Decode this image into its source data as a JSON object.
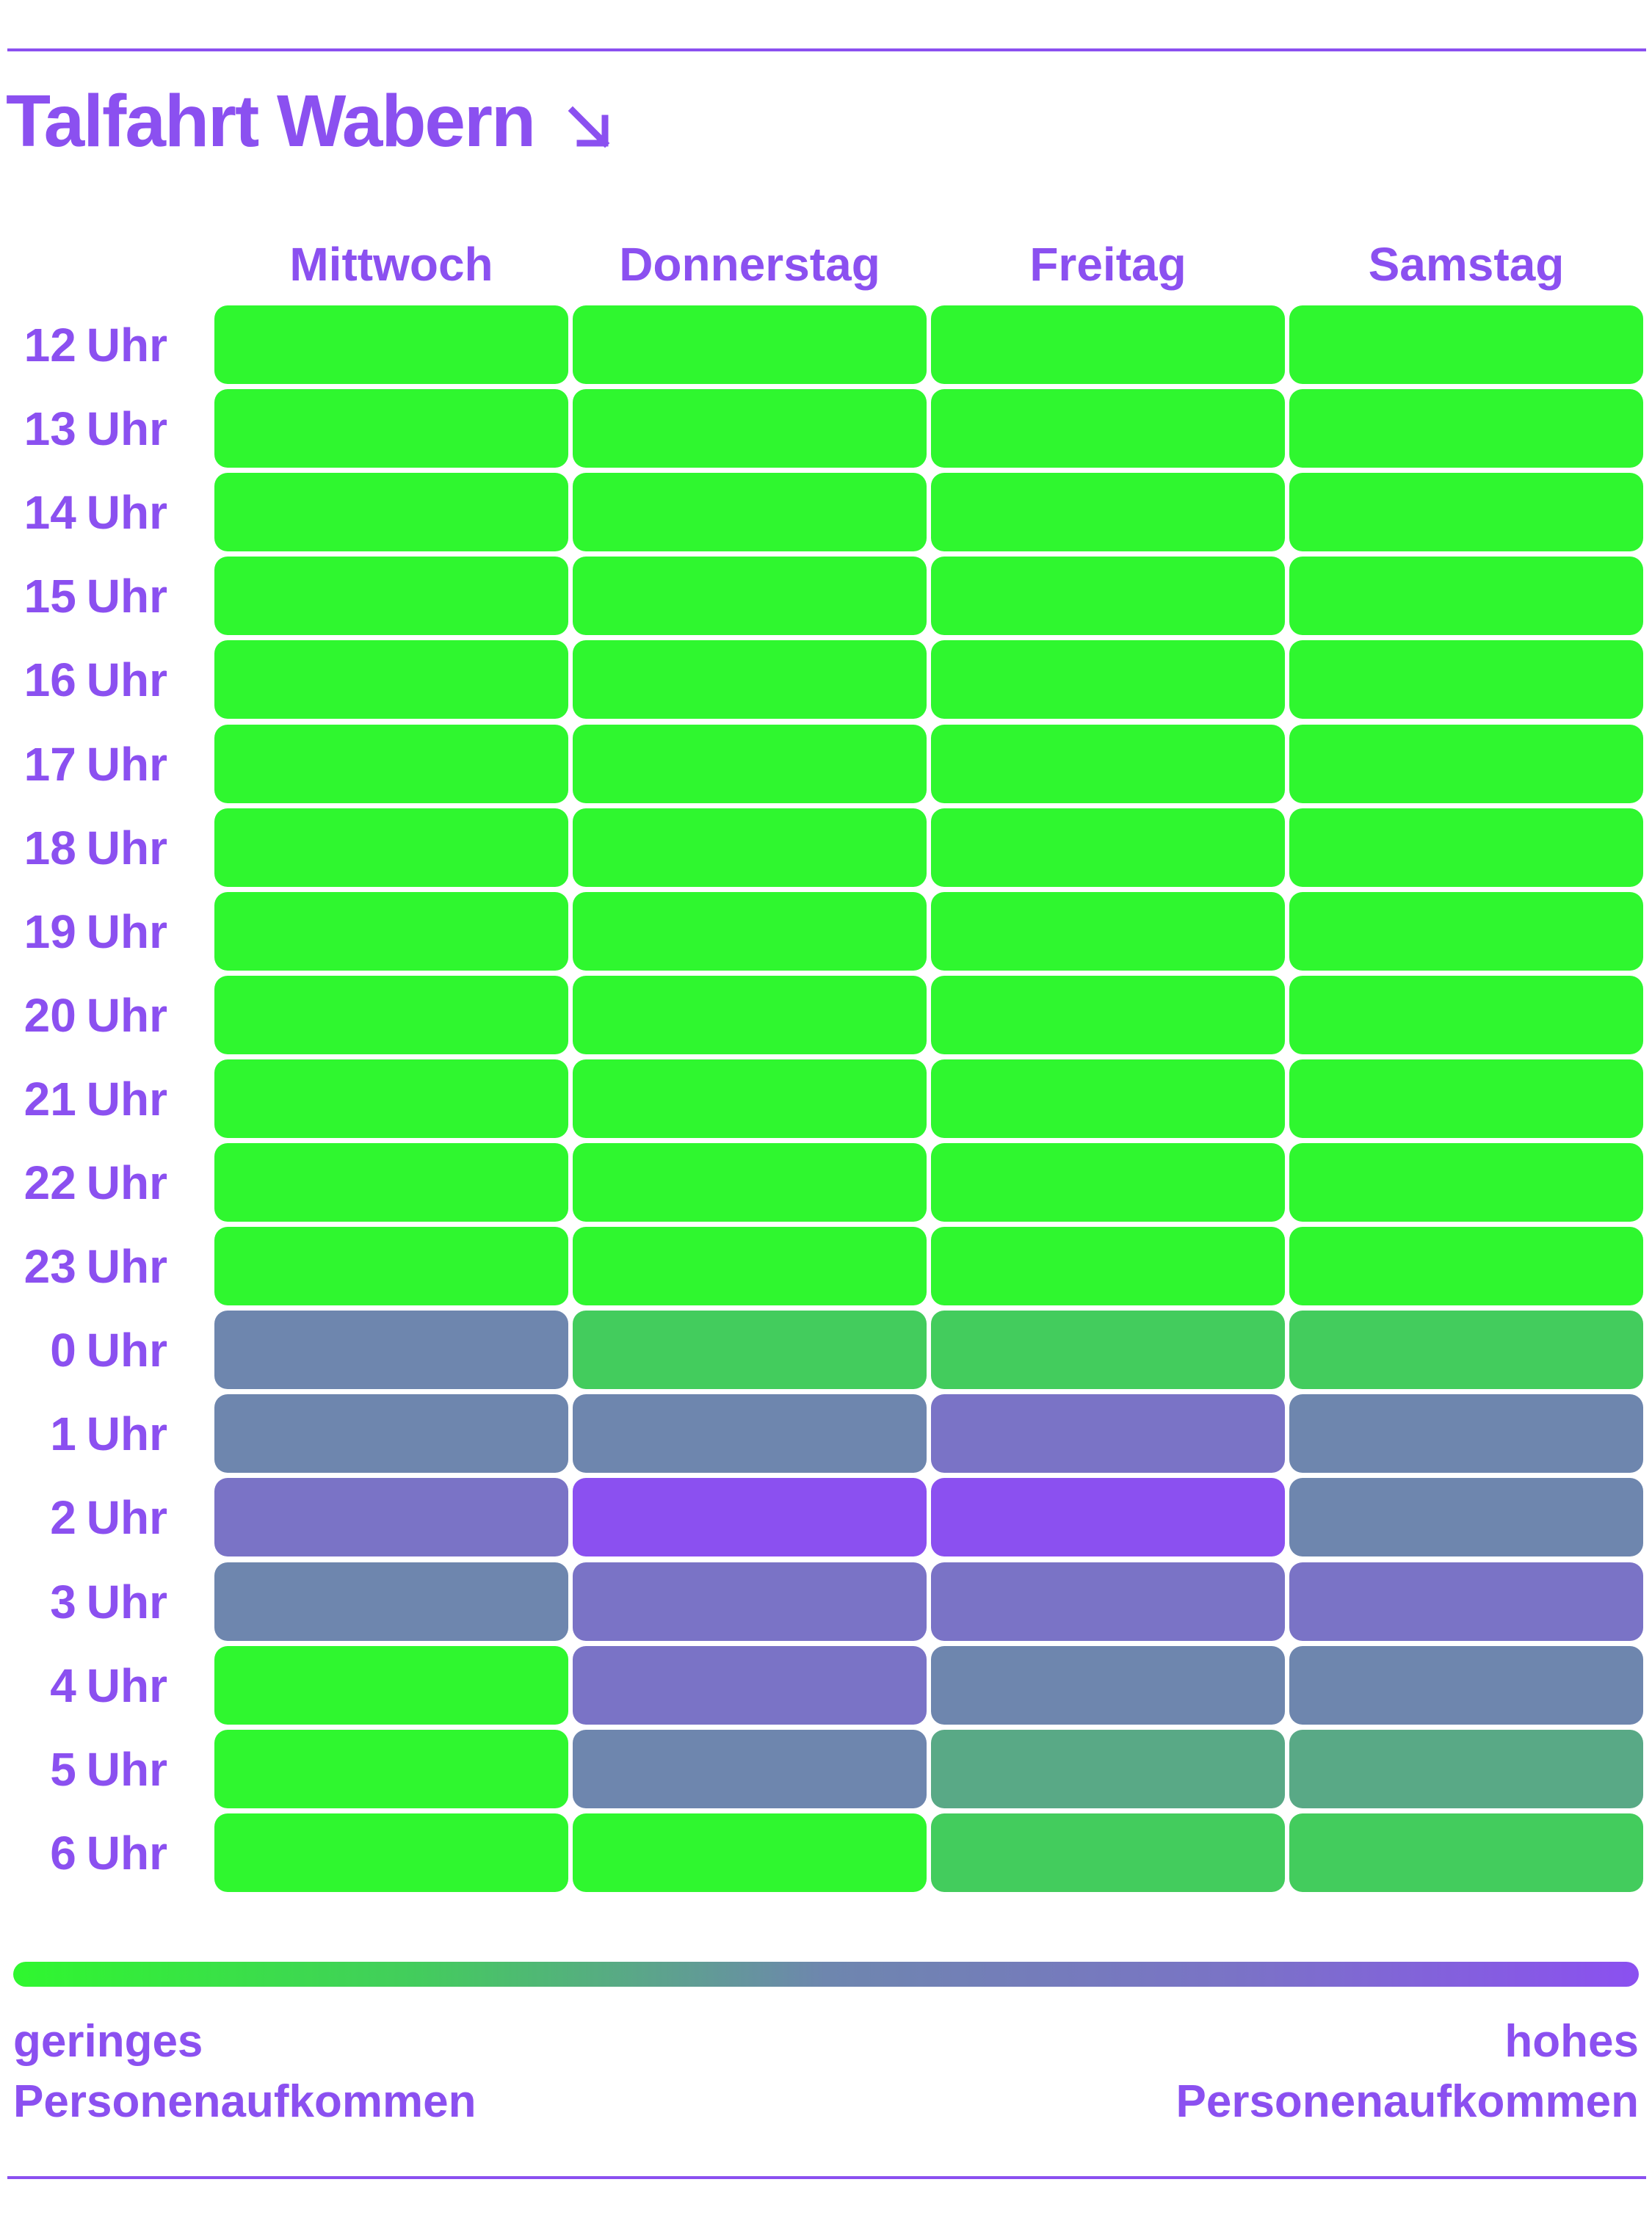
{
  "chart_data": {
    "type": "heatmap",
    "title": "Talfahrt Wabern",
    "title_icon": "arrow-down-right-icon",
    "columns": [
      "Mittwoch",
      "Donnerstag",
      "Freitag",
      "Samstag"
    ],
    "rows": [
      "12",
      "13",
      "14",
      "15",
      "16",
      "17",
      "18",
      "19",
      "20",
      "21",
      "22",
      "23",
      "0",
      "1",
      "2",
      "3",
      "4",
      "5",
      "6"
    ],
    "row_unit": "Uhr",
    "scale": {
      "min": 0,
      "max": 4,
      "min_label": "geringes Personenaufkommen",
      "max_label": "hohes Personenaufkommen"
    },
    "values": [
      [
        0,
        0,
        0,
        0
      ],
      [
        0,
        0,
        0,
        0
      ],
      [
        0,
        0,
        0,
        0
      ],
      [
        0,
        0,
        0,
        0
      ],
      [
        0,
        0,
        0,
        0
      ],
      [
        0,
        0,
        0,
        0
      ],
      [
        0,
        0,
        0,
        0
      ],
      [
        0,
        0,
        0,
        0
      ],
      [
        0,
        0,
        0,
        0
      ],
      [
        0,
        0,
        0,
        0
      ],
      [
        0,
        0,
        0,
        0
      ],
      [
        0,
        0,
        0,
        0
      ],
      [
        2,
        1,
        1,
        1
      ],
      [
        2,
        2,
        3,
        2
      ],
      [
        3,
        4,
        4,
        2
      ],
      [
        2,
        3,
        3,
        3
      ],
      [
        0,
        3,
        2,
        2
      ],
      [
        0,
        2,
        1.5,
        1.5
      ],
      [
        0,
        0,
        1,
        1
      ]
    ]
  },
  "colors": {
    "text": "#8b50f0",
    "scale": [
      "#2ff72f",
      "#43cc5d",
      "#6e86ae",
      "#7a73c6",
      "#8b50f0"
    ]
  },
  "legend": {
    "low_line1": "geringes",
    "low_line2": "Personenaufkommen",
    "high_line1": "hohes",
    "high_line2": "Personenaufkommen"
  }
}
